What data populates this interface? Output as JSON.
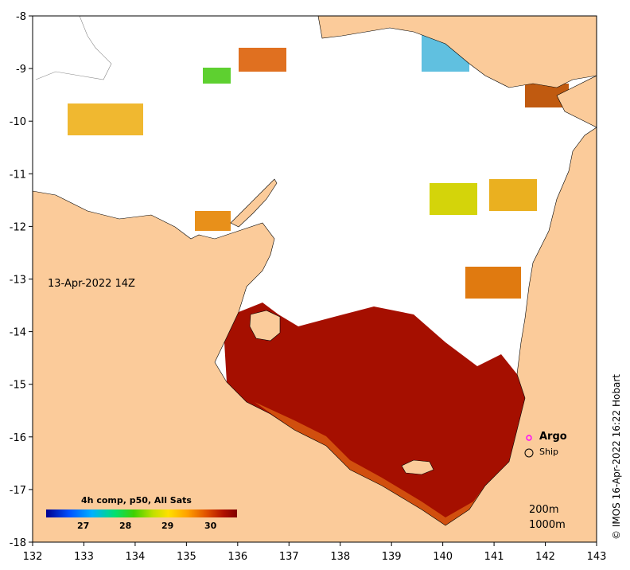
{
  "map": {
    "title_date": "13-Apr-2022 14Z",
    "x_ticks": [
      "132",
      "133",
      "134",
      "135",
      "136",
      "137",
      "138",
      "139",
      "140",
      "141",
      "142",
      "143"
    ],
    "y_ticks": [
      "-8",
      "-9",
      "-10",
      "-11",
      "-12",
      "-13",
      "-14",
      "-15",
      "-16",
      "-17",
      "-18"
    ],
    "lon_range": [
      132,
      143
    ],
    "lat_range": [
      -18,
      -8
    ],
    "land_color": "#fbcb9a",
    "ocean_color": "#ffffff",
    "sst_hot_color": "#a50f00"
  },
  "legend": {
    "argo_label": "Argo",
    "ship_label": "Ship",
    "argo_color": "#ff00ff"
  },
  "depth_contours": {
    "c200": "200m",
    "c1000": "1000m"
  },
  "colorbar": {
    "title": "4h comp, p50, All Sats",
    "ticks": [
      "27",
      "28",
      "29",
      "30"
    ],
    "colors": [
      "#00008f",
      "#0050ff",
      "#00b0ff",
      "#00e070",
      "#40d000",
      "#c0e000",
      "#ffe000",
      "#ffa000",
      "#e05000",
      "#b01000",
      "#800000"
    ]
  },
  "credit": "© IMOS 16-Apr-2022 16:22 Hobart"
}
